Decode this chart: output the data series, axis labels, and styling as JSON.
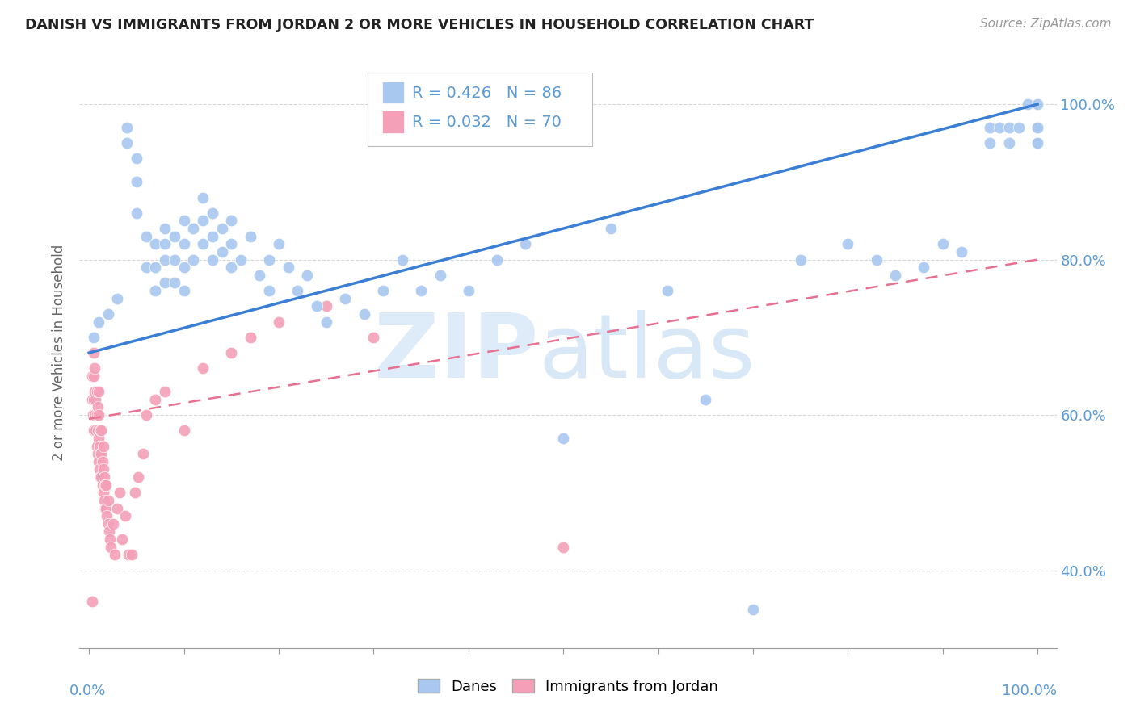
{
  "title": "DANISH VS IMMIGRANTS FROM JORDAN 2 OR MORE VEHICLES IN HOUSEHOLD CORRELATION CHART",
  "source": "Source: ZipAtlas.com",
  "ylabel": "2 or more Vehicles in Household",
  "R_danes": 0.426,
  "N_danes": 86,
  "R_jordan": 0.032,
  "N_jordan": 70,
  "blue_color": "#A8C8F0",
  "pink_color": "#F4A0B8",
  "blue_line_color": "#3B7FD4",
  "pink_line_color": "#E87090",
  "axis_label_color": "#5B9BD5",
  "grid_color": "#D8D8D8",
  "danes_x": [
    0.005,
    0.01,
    0.02,
    0.03,
    0.04,
    0.04,
    0.05,
    0.05,
    0.05,
    0.06,
    0.06,
    0.07,
    0.07,
    0.07,
    0.08,
    0.08,
    0.08,
    0.08,
    0.09,
    0.09,
    0.09,
    0.1,
    0.1,
    0.1,
    0.1,
    0.11,
    0.11,
    0.12,
    0.12,
    0.12,
    0.13,
    0.13,
    0.13,
    0.14,
    0.14,
    0.15,
    0.15,
    0.15,
    0.16,
    0.17,
    0.18,
    0.19,
    0.19,
    0.2,
    0.21,
    0.22,
    0.23,
    0.24,
    0.25,
    0.27,
    0.29,
    0.31,
    0.33,
    0.35,
    0.37,
    0.4,
    0.43,
    0.46,
    0.5,
    0.55,
    0.61,
    0.65,
    0.7,
    0.75,
    0.8,
    0.83,
    0.85,
    0.88,
    0.9,
    0.92,
    0.95,
    0.95,
    0.96,
    0.97,
    0.97,
    0.98,
    0.99,
    1.0,
    1.0,
    1.0,
    1.0,
    1.0,
    1.0,
    1.0,
    1.0,
    1.0
  ],
  "danes_y": [
    0.7,
    0.72,
    0.73,
    0.75,
    0.95,
    0.97,
    0.86,
    0.9,
    0.93,
    0.79,
    0.83,
    0.76,
    0.79,
    0.82,
    0.77,
    0.8,
    0.82,
    0.84,
    0.77,
    0.8,
    0.83,
    0.76,
    0.79,
    0.82,
    0.85,
    0.8,
    0.84,
    0.82,
    0.85,
    0.88,
    0.8,
    0.83,
    0.86,
    0.81,
    0.84,
    0.79,
    0.82,
    0.85,
    0.8,
    0.83,
    0.78,
    0.8,
    0.76,
    0.82,
    0.79,
    0.76,
    0.78,
    0.74,
    0.72,
    0.75,
    0.73,
    0.76,
    0.8,
    0.76,
    0.78,
    0.76,
    0.8,
    0.82,
    0.57,
    0.84,
    0.76,
    0.62,
    0.35,
    0.8,
    0.82,
    0.8,
    0.78,
    0.79,
    0.82,
    0.81,
    0.95,
    0.97,
    0.97,
    0.95,
    0.97,
    0.97,
    1.0,
    0.95,
    0.97,
    0.97,
    0.97,
    0.95,
    0.97,
    0.97,
    0.97,
    1.0
  ],
  "jordan_x": [
    0.003,
    0.003,
    0.004,
    0.005,
    0.005,
    0.005,
    0.005,
    0.006,
    0.006,
    0.006,
    0.007,
    0.007,
    0.008,
    0.008,
    0.008,
    0.009,
    0.009,
    0.009,
    0.01,
    0.01,
    0.01,
    0.01,
    0.011,
    0.011,
    0.012,
    0.012,
    0.012,
    0.013,
    0.013,
    0.013,
    0.014,
    0.014,
    0.015,
    0.015,
    0.015,
    0.016,
    0.016,
    0.017,
    0.017,
    0.018,
    0.018,
    0.019,
    0.02,
    0.02,
    0.021,
    0.022,
    0.023,
    0.025,
    0.027,
    0.03,
    0.032,
    0.035,
    0.038,
    0.042,
    0.045,
    0.048,
    0.052,
    0.057,
    0.06,
    0.07,
    0.08,
    0.1,
    0.12,
    0.15,
    0.17,
    0.2,
    0.25,
    0.3,
    0.5,
    0.003
  ],
  "jordan_y": [
    0.62,
    0.65,
    0.6,
    0.58,
    0.62,
    0.65,
    0.68,
    0.6,
    0.63,
    0.66,
    0.58,
    0.62,
    0.56,
    0.6,
    0.63,
    0.55,
    0.58,
    0.61,
    0.54,
    0.57,
    0.6,
    0.63,
    0.53,
    0.56,
    0.52,
    0.55,
    0.58,
    0.52,
    0.55,
    0.58,
    0.51,
    0.54,
    0.5,
    0.53,
    0.56,
    0.49,
    0.52,
    0.48,
    0.51,
    0.48,
    0.51,
    0.47,
    0.46,
    0.49,
    0.45,
    0.44,
    0.43,
    0.46,
    0.42,
    0.48,
    0.5,
    0.44,
    0.47,
    0.42,
    0.42,
    0.5,
    0.52,
    0.55,
    0.6,
    0.62,
    0.63,
    0.58,
    0.66,
    0.68,
    0.7,
    0.72,
    0.74,
    0.7,
    0.43,
    0.36
  ],
  "danes_line_x0": 0.0,
  "danes_line_y0": 0.68,
  "danes_line_x1": 1.0,
  "danes_line_y1": 1.0,
  "jordan_line_x0": 0.0,
  "jordan_line_y0": 0.595,
  "jordan_line_x1": 1.0,
  "jordan_line_y1": 0.8,
  "xlim": [
    -0.01,
    1.02
  ],
  "ylim": [
    0.3,
    1.06
  ],
  "yticks": [
    0.4,
    0.6,
    0.8,
    1.0
  ],
  "ytick_labels": [
    "40.0%",
    "60.0%",
    "80.0%",
    "100.0%"
  ]
}
